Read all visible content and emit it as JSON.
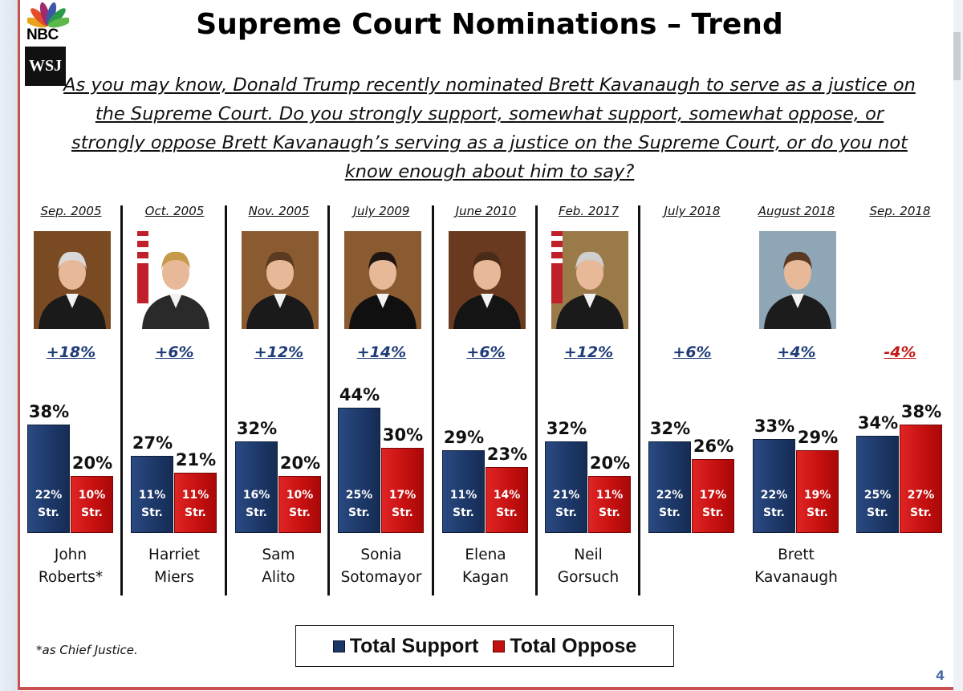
{
  "header": {
    "title": "Supreme Court Nominations – Trend",
    "question": "As you may know, Donald Trump recently nominated Brett Kavanaugh to serve as a justice on the Supreme Court.  Do you strongly support, somewhat support, somewhat oppose, or strongly oppose Brett Kavanaugh’s serving as a justice on the Supreme Court, or do you not know enough about him to say?",
    "logo_nbc": "NBC",
    "logo_wsj": "WSJ"
  },
  "chart_data": {
    "type": "bar",
    "title": "Supreme Court Nominations – Trend",
    "categories": [
      "Sep. 2005",
      "Oct. 2005",
      "Nov. 2005",
      "July 2009",
      "June 2010",
      "Feb. 2017",
      "July 2018",
      "August 2018",
      "Sep. 2018"
    ],
    "names": [
      "John Roberts*",
      "Harriet Miers",
      "Sam Alito",
      "Sonia Sotomayor",
      "Elena Kagan",
      "Neil Gorsuch",
      "",
      "Brett Kavanaugh",
      ""
    ],
    "series": [
      {
        "name": "Total Support",
        "color": "#1c3767",
        "values": [
          38,
          27,
          32,
          44,
          29,
          32,
          32,
          33,
          34
        ],
        "strong": [
          "22%",
          "11%",
          "16%",
          "25%",
          "11%",
          "21%",
          "22%",
          "22%",
          "25%"
        ]
      },
      {
        "name": "Total Oppose",
        "color": "#c40f0f",
        "values": [
          20,
          21,
          20,
          30,
          23,
          20,
          26,
          29,
          38
        ],
        "strong": [
          "10%",
          "11%",
          "10%",
          "17%",
          "14%",
          "11%",
          "17%",
          "19%",
          "27%"
        ]
      }
    ],
    "net": [
      "+18%",
      "+6%",
      "+12%",
      "+14%",
      "+6%",
      "+12%",
      "+6%",
      "+4%",
      "-4%"
    ],
    "net_colors": [
      "#1f3c78",
      "#1f3c78",
      "#1f3c78",
      "#1f3c78",
      "#1f3c78",
      "#1f3c78",
      "#1f3c78",
      "#1f3c78",
      "#c41818"
    ],
    "strong_suffix": "Str.",
    "ylim": [
      0,
      50
    ],
    "legend": {
      "support": "Total Support",
      "oppose": "Total Oppose"
    }
  },
  "footer": {
    "footnote": "*as Chief Justice.",
    "page_number": "4"
  },
  "colors": {
    "support": "#1c3767",
    "oppose": "#c40f0f",
    "accent": "#c85050"
  }
}
